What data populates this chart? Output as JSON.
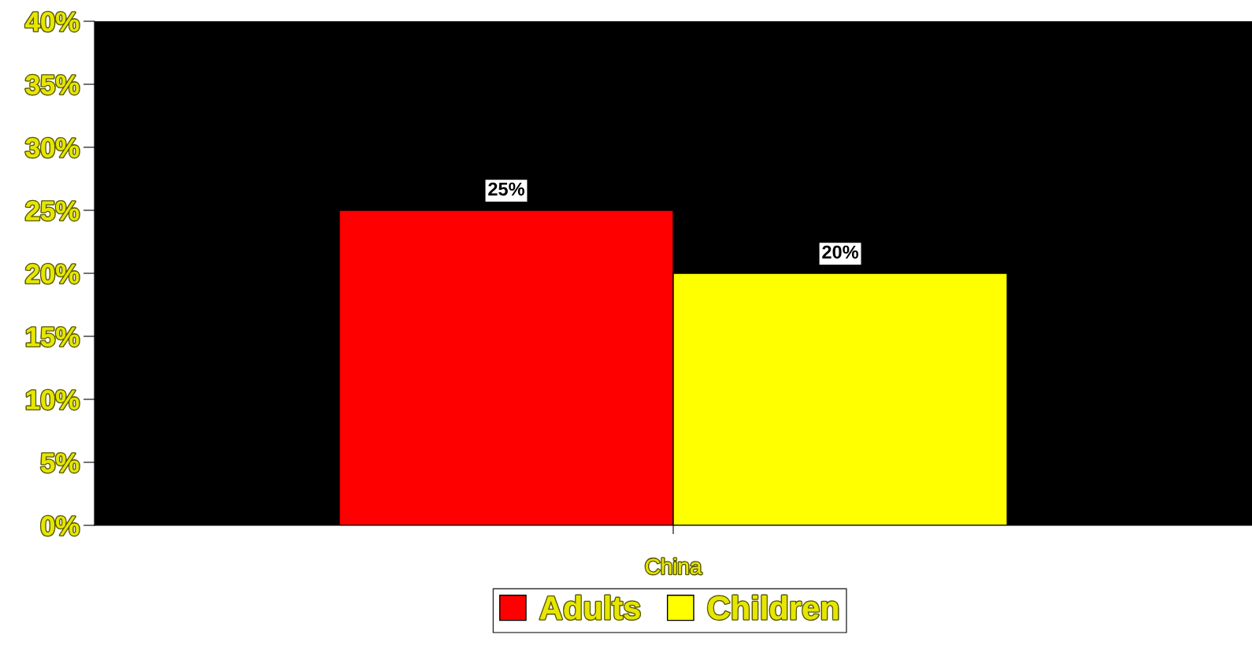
{
  "chart_data": {
    "type": "bar",
    "categories": [
      "China"
    ],
    "series": [
      {
        "name": "Adults",
        "color": "#ff0000",
        "values": [
          25
        ],
        "value_labels": [
          "25%"
        ]
      },
      {
        "name": "Children",
        "color": "#ffff00",
        "values": [
          20
        ],
        "value_labels": [
          "20%"
        ]
      }
    ],
    "ylim": [
      0,
      40
    ],
    "yticks": [
      {
        "value": 0,
        "label": "0%"
      },
      {
        "value": 5,
        "label": "5%"
      },
      {
        "value": 10,
        "label": "10%"
      },
      {
        "value": 15,
        "label": "15%"
      },
      {
        "value": 20,
        "label": "20%"
      },
      {
        "value": 25,
        "label": "25%"
      },
      {
        "value": 30,
        "label": "30%"
      },
      {
        "value": 35,
        "label": "35%"
      },
      {
        "value": 40,
        "label": "40%"
      }
    ],
    "grid": false,
    "legend": "bottom"
  }
}
